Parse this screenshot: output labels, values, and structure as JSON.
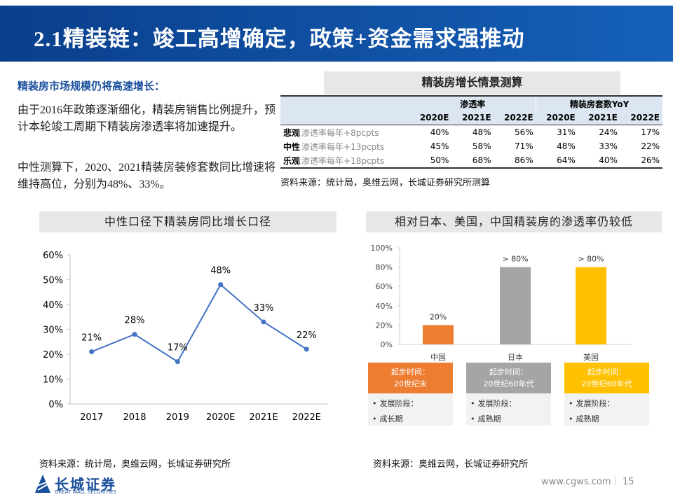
{
  "header": {
    "title": "2.1精装链：竣工高增确定，政策+资金需求强推动"
  },
  "intro": {
    "heading": "精装房市场规模仍将高速增长：",
    "paragraphs": [
      "由于2016年政策逐渐细化，精装房销售比例提升，预计本轮竣工周期下精装房渗透率将加速提升。",
      "中性测算下，2020、2021精装房装修套数同比增速将维持高位，分别为48%、33%。"
    ]
  },
  "table": {
    "title": "精装房增长情景测算",
    "groups": [
      "渗透率",
      "精装房套数YoY"
    ],
    "columns": [
      "2020E",
      "2021E",
      "2022E",
      "2020E",
      "2021E",
      "2022E"
    ],
    "rows": [
      {
        "label": "悲观",
        "note": "渗透率每年+8pcpts",
        "cells": [
          "40%",
          "48%",
          "56%",
          "31%",
          "24%",
          "17%"
        ]
      },
      {
        "label": "中性",
        "note": "渗透率每年+13pcpts",
        "cells": [
          "45%",
          "58%",
          "71%",
          "48%",
          "33%",
          "22%"
        ]
      },
      {
        "label": "乐观",
        "note": "渗透率每年+18pcpts",
        "cells": [
          "50%",
          "68%",
          "86%",
          "64%",
          "40%",
          "26%"
        ]
      }
    ],
    "source": "资料来源：统计局，奥维云网，长城证券研究所测算"
  },
  "chart_data": [
    {
      "type": "line",
      "title": "中性口径下精装房同比增长口径",
      "categories": [
        "2017",
        "2018",
        "2019",
        "2020E",
        "2021E",
        "2022E"
      ],
      "values": [
        21,
        28,
        17,
        48,
        33,
        22
      ],
      "value_labels": [
        "21%",
        "28%",
        "17%",
        "48%",
        "33%",
        "22%"
      ],
      "color": "#4472c4",
      "ylim": [
        0,
        60
      ],
      "yticks": [
        {
          "value": 0,
          "label": "0%"
        },
        {
          "value": 10,
          "label": "10%"
        },
        {
          "value": 20,
          "label": "20%"
        },
        {
          "value": 30,
          "label": "30%"
        },
        {
          "value": 40,
          "label": "40%"
        },
        {
          "value": 50,
          "label": "50%"
        },
        {
          "value": 60,
          "label": "60%"
        }
      ],
      "grid": false,
      "source": "资料来源：统计局，奥维云网，长城证券研究所"
    },
    {
      "type": "bar",
      "title": "相对日本、美国，中国精装房的渗透率仍较低",
      "categories": [
        "中国",
        "日本",
        "美国"
      ],
      "values": [
        20,
        80,
        80
      ],
      "value_labels": [
        "20%",
        "> 80%",
        "> 80%"
      ],
      "colors": [
        "#ed7d31",
        "#a5a5a5",
        "#ffc000"
      ],
      "ylim": [
        0,
        100
      ],
      "yticks": [
        {
          "value": 0,
          "label": "0%"
        },
        {
          "value": 20,
          "label": "20%"
        },
        {
          "value": 40,
          "label": "40%"
        },
        {
          "value": 60,
          "label": "60%"
        },
        {
          "value": 80,
          "label": "80%"
        },
        {
          "value": 100,
          "label": "100%"
        }
      ],
      "grid": false,
      "cards": [
        {
          "header": [
            "起步时间：",
            "20世纪末"
          ],
          "items": [
            "发展阶段：",
            "成长期"
          ]
        },
        {
          "header": [
            "起步时间：",
            "20世纪60年代"
          ],
          "items": [
            "发展阶段：",
            "成熟期"
          ]
        },
        {
          "header": [
            "起步时间：",
            "20世纪60年代"
          ],
          "items": [
            "发展阶段：",
            "成熟期"
          ]
        }
      ],
      "source": "资料来源：奥维云网，长城证券研究所"
    }
  ],
  "footer": {
    "logo": "长城证券",
    "logo_en": "GREAT WALL SECURITIES",
    "url": "www.cgws.com",
    "page": "15"
  }
}
